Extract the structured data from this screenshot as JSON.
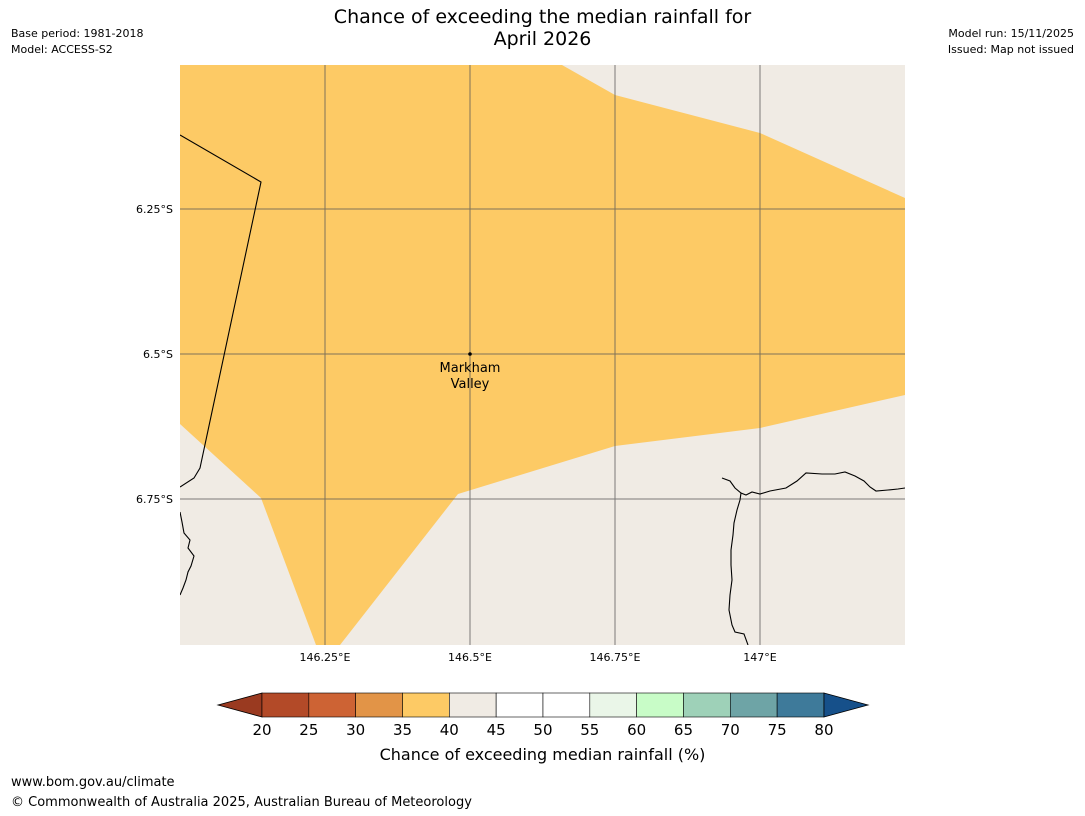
{
  "title_line1": "Chance of exceeding the median rainfall for",
  "title_line2": "April 2026",
  "meta_left": {
    "base_period": "Base period: 1981-2018",
    "model": "Model: ACCESS-S2"
  },
  "meta_right": {
    "model_run": "Model run: 15/11/2025",
    "issued": "Issued: Map not issued"
  },
  "map": {
    "lat_ticks": [
      "6.25°S",
      "6.5°S",
      "6.75°S"
    ],
    "lon_ticks": [
      "146.25°E",
      "146.5°E",
      "146.75°E",
      "147°E"
    ],
    "place_label_line1": "Markham",
    "place_label_line2": "Valley",
    "regions": [
      {
        "category": "35-40",
        "color": "#fdca65"
      },
      {
        "category": "40-45",
        "color": "#f0ebe4"
      }
    ]
  },
  "colorbar": {
    "tick_labels": [
      "20",
      "25",
      "30",
      "35",
      "40",
      "45",
      "50",
      "55",
      "60",
      "65",
      "70",
      "75",
      "80"
    ],
    "segment_colors": [
      "#b34a28",
      "#cd6334",
      "#e29447",
      "#fdca65",
      "#f0ebe4",
      "#ffffff",
      "#ffffff",
      "#eaf6e8",
      "#c8fcc7",
      "#9ed1b8",
      "#6ea4a6",
      "#3e7a9a"
    ],
    "low_extend_color": "#9a3a20",
    "high_extend_color": "#16508a",
    "label": "Chance of exceeding median rainfall (%)"
  },
  "footer": {
    "url": "www.bom.gov.au/climate",
    "copyright": "© Commonwealth of Australia 2025, Australian Bureau of Meteorology"
  }
}
